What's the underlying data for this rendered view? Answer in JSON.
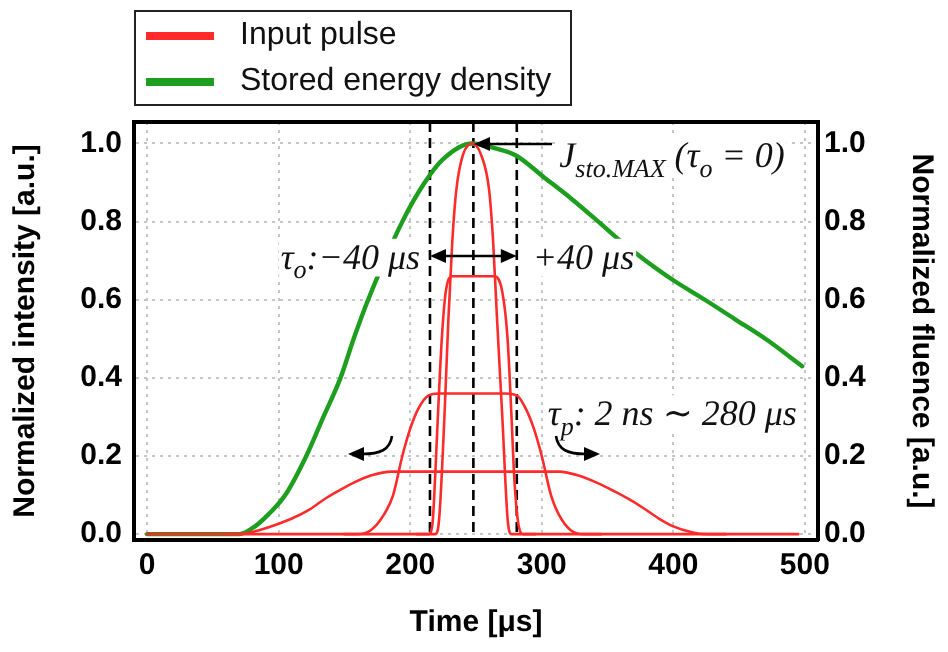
{
  "chart_data": {
    "type": "line",
    "xlabel": "Time [μs]",
    "ylabel": "Normalized intensity [a.u.]",
    "y2label": "Normalized fluence [a.u.]",
    "xlim": [
      -10,
      510
    ],
    "xticks": [
      0,
      100,
      200,
      300,
      400,
      500
    ],
    "ylim": [
      -0.015,
      1.055
    ],
    "yticks": [
      {
        "value": 0,
        "label": "0.0"
      },
      0.2,
      0.4,
      0.6,
      0.8,
      {
        "value": 1,
        "label": "1.0"
      }
    ],
    "y2lim": [
      -0.015,
      1.055
    ],
    "y2ticks": [
      {
        "value": 0,
        "label": "0.0"
      },
      0.2,
      0.4,
      0.6,
      0.8,
      {
        "value": 1,
        "label": "1.0"
      }
    ],
    "grid": true,
    "legend": "top left",
    "marker": "none",
    "series": [
      {
        "name": "Input pulse",
        "color": "#ff2b2b",
        "x": [
          0,
          219,
          222,
          226,
          229,
          232,
          235,
          240,
          247,
          254,
          260,
          263,
          266,
          270,
          274,
          277,
          495
        ],
        "values": [
          0,
          0,
          0.04,
          0.3,
          0.55,
          0.75,
          0.88,
          0.97,
          1.0,
          0.97,
          0.88,
          0.75,
          0.55,
          0.3,
          0.04,
          0,
          0
        ]
      },
      {
        "color": "#ff2b2b",
        "x": [
          205,
          214,
          217,
          219,
          221,
          224,
          227,
          232,
          264,
          270,
          274,
          277,
          279,
          282,
          286,
          295
        ],
        "values": [
          0,
          0,
          0.03,
          0.15,
          0.3,
          0.5,
          0.62,
          0.66,
          0.66,
          0.62,
          0.5,
          0.3,
          0.15,
          0.03,
          0,
          0
        ]
      },
      {
        "color": "#ff2b2b",
        "x": [
          150,
          160,
          170,
          180,
          187,
          194,
          200,
          206,
          214,
          222,
          272,
          281,
          288,
          294,
          300,
          307,
          313,
          322,
          332,
          345
        ],
        "values": [
          0,
          0,
          0.01,
          0.05,
          0.1,
          0.2,
          0.27,
          0.32,
          0.355,
          0.36,
          0.36,
          0.355,
          0.32,
          0.27,
          0.2,
          0.1,
          0.05,
          0.01,
          0,
          0
        ]
      },
      {
        "color": "#ff2b2b",
        "x": [
          60,
          70,
          85,
          110,
          122,
          135,
          145,
          156,
          170,
          186,
          313,
          328,
          343,
          355,
          366,
          378,
          389,
          400,
          414,
          425,
          440
        ],
        "values": [
          0,
          0,
          0.01,
          0.04,
          0.06,
          0.09,
          0.11,
          0.13,
          0.15,
          0.16,
          0.16,
          0.15,
          0.13,
          0.11,
          0.09,
          0.065,
          0.04,
          0.02,
          0.005,
          0,
          0
        ]
      },
      {
        "name": "Stored energy density",
        "color": "#1e9e1e",
        "axis": "y2",
        "x": [
          0,
          70,
          82,
          92,
          105,
          121,
          134,
          147,
          157,
          168,
          194,
          211,
          225,
          247,
          262,
          280,
          303,
          322,
          343,
          360,
          379,
          400,
          424,
          447,
          470,
          498
        ],
        "values": [
          0,
          0,
          0.02,
          0.05,
          0.1,
          0.2,
          0.3,
          0.4,
          0.5,
          0.6,
          0.8,
          0.9,
          0.96,
          1.0,
          0.99,
          0.97,
          0.91,
          0.86,
          0.8,
          0.75,
          0.7,
          0.65,
          0.6,
          0.55,
          0.5,
          0.43
        ]
      }
    ],
    "ref_lines": [
      {
        "axis": "x",
        "value": 215,
        "color": "#000000",
        "line_style": "dashed"
      },
      {
        "axis": "x",
        "value": 248,
        "color": "#000000",
        "line_style": "dashed"
      },
      {
        "axis": "x",
        "value": 281,
        "color": "#000000",
        "line_style": "dashed"
      }
    ],
    "annotations": [
      {
        "text": "J$_{sto.MAX}$ (τ$_{o}$ = 0)",
        "x": 248,
        "y": 1.0
      },
      {
        "text": "τ$_{o}$:−40 μs",
        "x": 215,
        "y": 0.71
      },
      {
        "text": "+40 μs",
        "x": 281,
        "y": 0.71
      },
      "τ$_{p}$: 2 ns ∼ 280 μs"
    ]
  }
}
